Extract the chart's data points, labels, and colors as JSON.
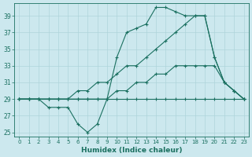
{
  "xlabel": "Humidex (Indice chaleur)",
  "background_color": "#cce8ee",
  "grid_color": "#aed4da",
  "line_color": "#1a7060",
  "xlim": [
    -0.5,
    23.5
  ],
  "ylim": [
    24.5,
    40.5
  ],
  "yticks": [
    25,
    27,
    29,
    31,
    33,
    35,
    37,
    39
  ],
  "xticks": [
    0,
    1,
    2,
    3,
    4,
    5,
    6,
    7,
    8,
    9,
    10,
    11,
    12,
    13,
    14,
    15,
    16,
    17,
    18,
    19,
    20,
    21,
    22,
    23
  ],
  "series": [
    {
      "x": [
        0,
        1,
        2,
        3,
        4,
        5,
        6,
        7,
        8,
        9,
        10,
        11,
        12,
        13,
        14,
        15,
        16,
        17,
        18,
        19,
        20,
        21,
        22,
        23
      ],
      "y": [
        29,
        29,
        29,
        29,
        29,
        29,
        29,
        29,
        29,
        29,
        29,
        29,
        29,
        29,
        29,
        29,
        29,
        29,
        29,
        29,
        29,
        29,
        29,
        29
      ],
      "marker": true
    },
    {
      "x": [
        0,
        1,
        2,
        3,
        4,
        5,
        6,
        7,
        8,
        9,
        10,
        11,
        12,
        13,
        14,
        15,
        16,
        17,
        18,
        19,
        20,
        21,
        22,
        23
      ],
      "y": [
        29,
        29,
        29,
        29,
        29,
        29,
        29,
        29,
        29,
        29,
        30,
        30,
        31,
        31,
        32,
        32,
        33,
        33,
        33,
        33,
        33,
        31,
        30,
        29
      ],
      "marker": true
    },
    {
      "x": [
        0,
        1,
        2,
        3,
        4,
        5,
        6,
        7,
        8,
        9,
        10,
        11,
        12,
        13,
        14,
        15,
        16,
        17,
        18,
        19,
        20,
        21,
        22,
        23
      ],
      "y": [
        29,
        29,
        29,
        29,
        29,
        29,
        30,
        30,
        31,
        31,
        32,
        33,
        33,
        34,
        35,
        36,
        37,
        38,
        39,
        39,
        34,
        31,
        30,
        29
      ],
      "marker": true
    },
    {
      "x": [
        0,
        1,
        2,
        3,
        4,
        5,
        6,
        7,
        8,
        9,
        10,
        11,
        12,
        13,
        14,
        15,
        16,
        17,
        18,
        19,
        20,
        21,
        22,
        23
      ],
      "y": [
        29,
        29,
        29,
        28,
        28,
        28,
        26,
        25,
        26,
        29,
        34,
        37,
        37.5,
        38,
        40,
        40,
        39.5,
        39,
        39,
        39,
        34,
        31,
        30,
        29
      ],
      "marker": true
    }
  ]
}
